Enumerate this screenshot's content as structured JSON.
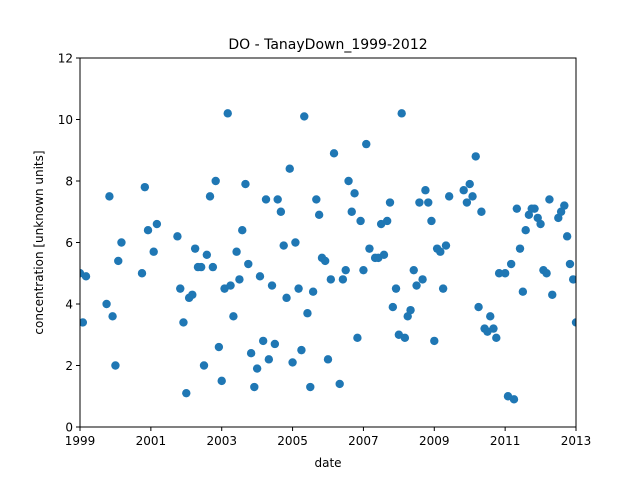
{
  "chart_data": {
    "type": "scatter",
    "title": "DO - TanayDown_1999-2012",
    "xlabel": "date",
    "ylabel": "concentration [unknown units]",
    "xlim": [
      1999,
      2013
    ],
    "ylim": [
      0,
      12
    ],
    "xticks": [
      "1999",
      "2001",
      "2003",
      "2005",
      "2007",
      "2009",
      "2011",
      "2013"
    ],
    "yticks": [
      "0",
      "2",
      "4",
      "6",
      "8",
      "10",
      "12"
    ],
    "grid": false,
    "marker_color": "#1f77b4",
    "series": [
      {
        "points": [
          [
            1999.0,
            5.0
          ],
          [
            1999.08,
            3.4
          ],
          [
            1999.17,
            4.9
          ],
          [
            1999.75,
            4.0
          ],
          [
            1999.83,
            7.5
          ],
          [
            1999.92,
            3.6
          ],
          [
            2000.0,
            2.0
          ],
          [
            2000.08,
            5.4
          ],
          [
            2000.17,
            6.0
          ],
          [
            2000.75,
            5.0
          ],
          [
            2000.83,
            7.8
          ],
          [
            2000.92,
            6.4
          ],
          [
            2001.08,
            5.7
          ],
          [
            2001.17,
            6.6
          ],
          [
            2001.75,
            6.2
          ],
          [
            2001.83,
            4.5
          ],
          [
            2001.92,
            3.4
          ],
          [
            2002.0,
            1.1
          ],
          [
            2002.08,
            4.2
          ],
          [
            2002.17,
            4.3
          ],
          [
            2002.25,
            5.8
          ],
          [
            2002.33,
            5.2
          ],
          [
            2002.42,
            5.2
          ],
          [
            2002.5,
            2.0
          ],
          [
            2002.58,
            5.6
          ],
          [
            2002.67,
            7.5
          ],
          [
            2002.75,
            5.2
          ],
          [
            2002.83,
            8.0
          ],
          [
            2002.92,
            2.6
          ],
          [
            2003.0,
            1.5
          ],
          [
            2003.08,
            4.5
          ],
          [
            2003.17,
            10.2
          ],
          [
            2003.25,
            4.6
          ],
          [
            2003.33,
            3.6
          ],
          [
            2003.42,
            5.7
          ],
          [
            2003.5,
            4.8
          ],
          [
            2003.58,
            6.4
          ],
          [
            2003.67,
            7.9
          ],
          [
            2003.75,
            5.3
          ],
          [
            2003.83,
            2.4
          ],
          [
            2003.92,
            1.3
          ],
          [
            2004.0,
            1.9
          ],
          [
            2004.08,
            4.9
          ],
          [
            2004.17,
            2.8
          ],
          [
            2004.25,
            7.4
          ],
          [
            2004.33,
            2.2
          ],
          [
            2004.42,
            4.6
          ],
          [
            2004.5,
            2.7
          ],
          [
            2004.58,
            7.4
          ],
          [
            2004.67,
            7.0
          ],
          [
            2004.75,
            5.9
          ],
          [
            2004.83,
            4.2
          ],
          [
            2004.92,
            8.4
          ],
          [
            2005.0,
            2.1
          ],
          [
            2005.08,
            6.0
          ],
          [
            2005.17,
            4.5
          ],
          [
            2005.25,
            2.5
          ],
          [
            2005.33,
            10.1
          ],
          [
            2005.42,
            3.7
          ],
          [
            2005.5,
            1.3
          ],
          [
            2005.58,
            4.4
          ],
          [
            2005.67,
            7.4
          ],
          [
            2005.75,
            6.9
          ],
          [
            2005.83,
            5.5
          ],
          [
            2005.92,
            5.4
          ],
          [
            2006.0,
            2.2
          ],
          [
            2006.08,
            4.8
          ],
          [
            2006.17,
            8.9
          ],
          [
            2006.33,
            1.4
          ],
          [
            2006.42,
            4.8
          ],
          [
            2006.5,
            5.1
          ],
          [
            2006.58,
            8.0
          ],
          [
            2006.67,
            7.0
          ],
          [
            2006.75,
            7.6
          ],
          [
            2006.83,
            2.9
          ],
          [
            2006.92,
            6.7
          ],
          [
            2007.0,
            5.1
          ],
          [
            2007.08,
            9.2
          ],
          [
            2007.17,
            5.8
          ],
          [
            2007.33,
            5.5
          ],
          [
            2007.42,
            5.5
          ],
          [
            2007.5,
            6.6
          ],
          [
            2007.58,
            5.6
          ],
          [
            2007.67,
            6.7
          ],
          [
            2007.75,
            7.3
          ],
          [
            2007.83,
            3.9
          ],
          [
            2007.92,
            4.5
          ],
          [
            2008.0,
            3.0
          ],
          [
            2008.08,
            10.2
          ],
          [
            2008.17,
            2.9
          ],
          [
            2008.25,
            3.6
          ],
          [
            2008.33,
            3.8
          ],
          [
            2008.42,
            5.1
          ],
          [
            2008.5,
            4.6
          ],
          [
            2008.58,
            7.3
          ],
          [
            2008.67,
            4.8
          ],
          [
            2008.75,
            7.7
          ],
          [
            2008.83,
            7.3
          ],
          [
            2008.92,
            6.7
          ],
          [
            2009.0,
            2.8
          ],
          [
            2009.08,
            5.8
          ],
          [
            2009.17,
            5.7
          ],
          [
            2009.25,
            4.5
          ],
          [
            2009.33,
            5.9
          ],
          [
            2009.42,
            7.5
          ],
          [
            2009.83,
            7.7
          ],
          [
            2009.92,
            7.3
          ],
          [
            2010.0,
            7.9
          ],
          [
            2010.08,
            7.5
          ],
          [
            2010.17,
            8.8
          ],
          [
            2010.25,
            3.9
          ],
          [
            2010.33,
            7.0
          ],
          [
            2010.42,
            3.2
          ],
          [
            2010.5,
            3.1
          ],
          [
            2010.58,
            3.6
          ],
          [
            2010.67,
            3.2
          ],
          [
            2010.75,
            2.9
          ],
          [
            2010.83,
            5.0
          ],
          [
            2011.0,
            5.0
          ],
          [
            2011.08,
            1.0
          ],
          [
            2011.17,
            5.3
          ],
          [
            2011.25,
            0.9
          ],
          [
            2011.33,
            7.1
          ],
          [
            2011.42,
            5.8
          ],
          [
            2011.5,
            4.4
          ],
          [
            2011.58,
            6.4
          ],
          [
            2011.67,
            6.9
          ],
          [
            2011.75,
            7.1
          ],
          [
            2011.83,
            7.1
          ],
          [
            2011.92,
            6.8
          ],
          [
            2012.0,
            6.6
          ],
          [
            2012.08,
            5.1
          ],
          [
            2012.17,
            5.0
          ],
          [
            2012.25,
            7.4
          ],
          [
            2012.33,
            4.3
          ],
          [
            2012.5,
            6.8
          ],
          [
            2012.58,
            7.0
          ],
          [
            2012.67,
            7.2
          ],
          [
            2012.75,
            6.2
          ],
          [
            2012.83,
            5.3
          ],
          [
            2012.92,
            4.8
          ],
          [
            2013.0,
            3.4
          ]
        ]
      }
    ]
  }
}
